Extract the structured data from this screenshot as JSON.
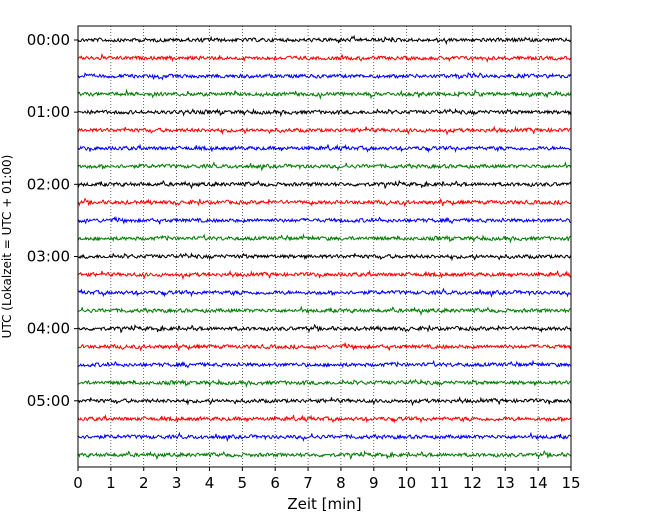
{
  "chart_data": {
    "type": "line",
    "title": "",
    "xlabel": "Zeit  [min]",
    "ylabel": "UTC (Lokalzeit = UTC + 01:00)",
    "xlim": [
      0,
      15
    ],
    "x_ticks": [
      "0",
      "1",
      "2",
      "3",
      "4",
      "5",
      "6",
      "7",
      "8",
      "9",
      "10",
      "11",
      "12",
      "13",
      "14",
      "15"
    ],
    "y_tick_labels": [
      "00:00",
      "01:00",
      "02:00",
      "03:00",
      "04:00",
      "05:00"
    ],
    "grid": "vertical dotted at each minute",
    "trace_interval_minutes": 15,
    "trace_start_times_utc": [
      "00:00",
      "00:15",
      "00:30",
      "00:45",
      "01:00",
      "01:15",
      "01:30",
      "01:45",
      "02:00",
      "02:15",
      "02:30",
      "02:45",
      "03:00",
      "03:15",
      "03:30",
      "03:45",
      "04:00",
      "04:15",
      "04:30",
      "04:45",
      "05:00",
      "05:15",
      "05:30",
      "05:45"
    ],
    "trace_color_cycle": [
      "#000000",
      "#ff0000",
      "#0000ff",
      "#008000"
    ],
    "trace_count": 24
  }
}
